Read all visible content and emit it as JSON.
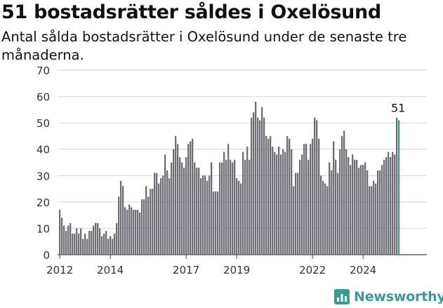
{
  "header": {
    "title": "51 bostadsrätter såldes i Oxelösund",
    "subtitle": "Antal sålda bostadsrätter i Oxelösund under de senaste tre månaderna."
  },
  "brand": {
    "name": "Newsworthy",
    "icon": "bar-chart-icon",
    "color": "#3a9b92"
  },
  "chart_data": {
    "type": "bar",
    "title": "51 bostadsrätter såldes i Oxelösund",
    "subtitle": "Antal sålda bostadsrätter i Oxelösund under de senaste tre månaderna.",
    "xlabel": "",
    "ylabel": "",
    "ylim": [
      0,
      70
    ],
    "yticks": [
      0,
      10,
      20,
      30,
      40,
      50,
      60,
      70
    ],
    "grid": true,
    "start": "2012-01",
    "frequency": "monthly",
    "xtick_labels": [
      {
        "label": "2012",
        "index": 0
      },
      {
        "label": "2014",
        "index": 24
      },
      {
        "label": "2017",
        "index": 60
      },
      {
        "label": "2019",
        "index": 84
      },
      {
        "label": "2022",
        "index": 120
      },
      {
        "label": "2024",
        "index": 144
      }
    ],
    "bar_color": "#6e6e74",
    "highlight_color": "#3a9b92",
    "highlight_last": true,
    "annotation": {
      "text": "51",
      "target": "last-bar"
    },
    "values": [
      17,
      14,
      11,
      9,
      11,
      12,
      8,
      8,
      10,
      8,
      10,
      6,
      8,
      6,
      9,
      9,
      11,
      12,
      12,
      10,
      7,
      8,
      9,
      6,
      7,
      6,
      8,
      12,
      22,
      28,
      26,
      18,
      17,
      19,
      18,
      17,
      17,
      17,
      16,
      21,
      21,
      26,
      22,
      25,
      25,
      31,
      31,
      27,
      29,
      30,
      38,
      32,
      29,
      35,
      40,
      45,
      42,
      37,
      35,
      33,
      37,
      42,
      43,
      44,
      35,
      33,
      33,
      29,
      30,
      30,
      28,
      30,
      35,
      24,
      24,
      24,
      35,
      35,
      39,
      36,
      42,
      36,
      35,
      36,
      29,
      28,
      27,
      39,
      36,
      41,
      36,
      52,
      54,
      58,
      52,
      51,
      56,
      52,
      45,
      44,
      45,
      41,
      39,
      38,
      41,
      38,
      40,
      39,
      45,
      44,
      40,
      26,
      31,
      31,
      36,
      38,
      42,
      42,
      36,
      42,
      44,
      52,
      51,
      44,
      30,
      28,
      27,
      26,
      35,
      32,
      43,
      36,
      31,
      40,
      45,
      47,
      40,
      37,
      34,
      38,
      36,
      36,
      33,
      34,
      34,
      35,
      32,
      26,
      26,
      28,
      27,
      32,
      32,
      34,
      36,
      37,
      39,
      37,
      39,
      38,
      52,
      51
    ]
  }
}
